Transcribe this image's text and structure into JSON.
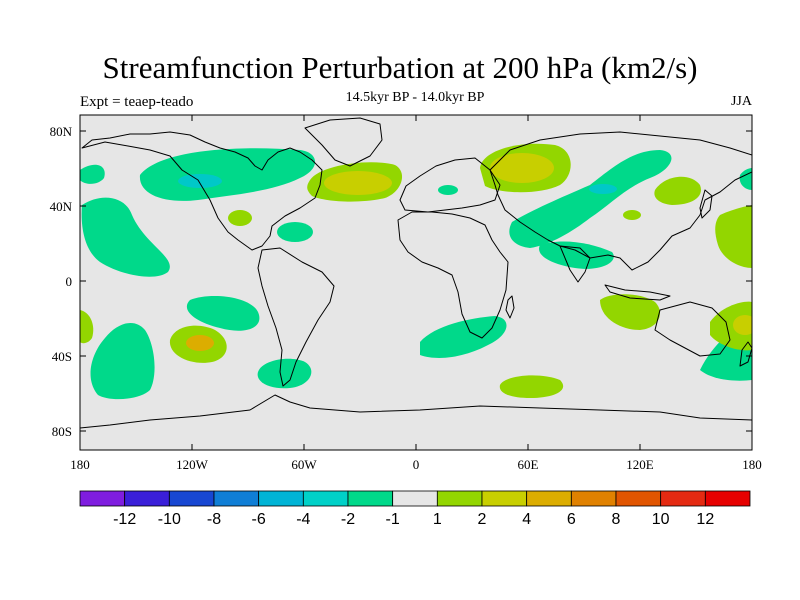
{
  "title": "Streamfunction Perturbation at 200 hPa (km2/s)",
  "subtitle": "14.5kyr BP - 14.0kyr BP",
  "left_label": "Expt = teaep-teado",
  "right_label": "JJA",
  "axes": {
    "lon_ticks": [
      "180",
      "120W",
      "60W",
      "0",
      "60E",
      "120E",
      "180"
    ],
    "lat_ticks": [
      "80N",
      "40N",
      "0",
      "40S",
      "80S"
    ]
  },
  "colorbar": {
    "labels": [
      "-12",
      "-10",
      "-8",
      "-6",
      "-4",
      "-2",
      "-1",
      "1",
      "2",
      "4",
      "6",
      "8",
      "10",
      "12"
    ],
    "colors": [
      "#7f1ddf",
      "#3a1fd9",
      "#1747d2",
      "#0f7ed6",
      "#00b4d6",
      "#00d1c8",
      "#00d98a",
      "#e6e6e6",
      "#93d600",
      "#c8cf00",
      "#dcad00",
      "#e08100",
      "#e15500",
      "#e42a12",
      "#e60000"
    ]
  },
  "colors": {
    "background": "#e6e6e6",
    "land_outline": "#000000"
  }
}
